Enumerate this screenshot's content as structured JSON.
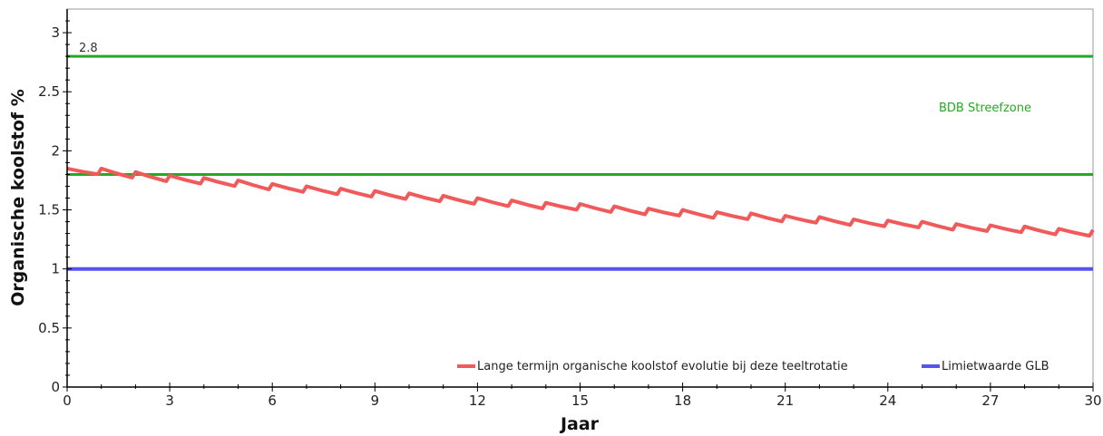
{
  "chart_data": {
    "type": "line",
    "xlabel": "Jaar",
    "ylabel": "Organische koolstof  %",
    "xlim": [
      0,
      30
    ],
    "ylim": [
      0,
      3.2
    ],
    "xticks": [
      "0",
      "3",
      "6",
      "9",
      "12",
      "15",
      "18",
      "21",
      "24",
      "27",
      "30"
    ],
    "yticks": [
      "0",
      "0.5",
      "1",
      "1.5",
      "2",
      "2.5",
      "3"
    ],
    "grid": false,
    "legend_position": "bottom-right",
    "annotations": {
      "upper_label": "2.8",
      "zone_label": "BDB Streefzone"
    },
    "zone": {
      "lower": 1.8,
      "upper": 2.8,
      "color": "#22aa22"
    },
    "series": [
      {
        "name": "Lange termijn organische koolstof evolutie bij deze teeltrotatie",
        "color": "#f05a5a",
        "x": [
          0,
          0.5,
          1,
          2,
          3,
          4,
          5,
          6,
          7,
          8,
          9,
          10,
          11,
          12,
          13,
          14,
          15,
          16,
          17,
          18,
          19,
          20,
          21,
          22,
          23,
          24,
          25,
          26,
          27,
          28,
          29,
          30
        ],
        "y": [
          1.85,
          1.83,
          1.82,
          1.79,
          1.76,
          1.74,
          1.72,
          1.69,
          1.67,
          1.65,
          1.63,
          1.61,
          1.59,
          1.57,
          1.55,
          1.53,
          1.52,
          1.5,
          1.48,
          1.47,
          1.45,
          1.44,
          1.42,
          1.41,
          1.39,
          1.38,
          1.37,
          1.35,
          1.34,
          1.33,
          1.31,
          1.3
        ]
      },
      {
        "name": "Limietwaarde GLB",
        "color": "#5555ee",
        "x": [
          0,
          30
        ],
        "y": [
          1.0,
          1.0
        ]
      }
    ]
  }
}
